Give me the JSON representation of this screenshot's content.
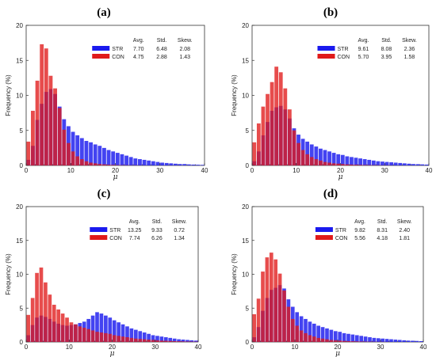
{
  "colors": {
    "STR": "#1a1aee",
    "CON": "#e01a1a"
  },
  "chart_data": [
    {
      "type": "bar",
      "panel": "(a)",
      "xlabel": "μ",
      "ylabel": "Frequency (%)",
      "xlim": [
        0,
        40
      ],
      "ylim": [
        0,
        20
      ],
      "xticks": [
        0,
        10,
        20,
        30,
        40
      ],
      "yticks": [
        0,
        5,
        10,
        15,
        20
      ],
      "bin_width": 1,
      "stats_header": [
        "Avg.",
        "Std.",
        "Skew."
      ],
      "series": [
        {
          "name": "STR",
          "avg": "7.70",
          "std": "6.48",
          "skew": "2.08",
          "values": [
            0.8,
            2.8,
            6.5,
            8.8,
            10.5,
            10.9,
            10.2,
            8.4,
            6.6,
            5.6,
            4.8,
            4.3,
            3.9,
            3.5,
            3.3,
            3.0,
            2.8,
            2.5,
            2.2,
            2.0,
            1.8,
            1.6,
            1.4,
            1.2,
            1.0,
            0.9,
            0.8,
            0.7,
            0.6,
            0.5,
            0.4,
            0.35,
            0.3,
            0.25,
            0.2,
            0.2,
            0.15,
            0.12,
            0.1,
            0.08
          ]
        },
        {
          "name": "CON",
          "avg": "4.75",
          "std": "2.88",
          "skew": "1.43",
          "values": [
            3.4,
            7.8,
            12.1,
            17.3,
            16.7,
            12.8,
            11.0,
            8.2,
            5.1,
            3.2,
            2.0,
            1.3,
            0.9,
            0.6,
            0.4,
            0.3,
            0.2,
            0.15,
            0.1,
            0.08,
            0.05,
            0.04,
            0.03,
            0.02,
            0.02,
            0.01,
            0.01,
            0,
            0,
            0,
            0,
            0,
            0,
            0,
            0,
            0,
            0,
            0,
            0,
            0
          ]
        }
      ]
    },
    {
      "type": "bar",
      "panel": "(b)",
      "xlabel": "μ",
      "ylabel": "Frequency (%)",
      "xlim": [
        0,
        40
      ],
      "ylim": [
        0,
        20
      ],
      "xticks": [
        0,
        10,
        20,
        30,
        40
      ],
      "yticks": [
        0,
        5,
        10,
        15,
        20
      ],
      "bin_width": 1,
      "stats_header": [
        "Avg.",
        "Std.",
        "Skew."
      ],
      "series": [
        {
          "name": "STR",
          "avg": "9.61",
          "std": "8.08",
          "skew": "2.36",
          "values": [
            0.6,
            2.0,
            4.3,
            6.2,
            7.8,
            8.3,
            8.5,
            8.0,
            6.7,
            5.3,
            4.4,
            3.8,
            3.4,
            3.0,
            2.7,
            2.4,
            2.2,
            2.0,
            1.8,
            1.6,
            1.5,
            1.3,
            1.2,
            1.1,
            1.0,
            0.9,
            0.8,
            0.7,
            0.6,
            0.55,
            0.5,
            0.45,
            0.4,
            0.35,
            0.3,
            0.25,
            0.2,
            0.18,
            0.15,
            0.12
          ]
        },
        {
          "name": "CON",
          "avg": "5.70",
          "std": "3.95",
          "skew": "1.58",
          "values": [
            3.3,
            6.0,
            8.4,
            10.2,
            11.9,
            14.1,
            13.3,
            11.0,
            8.0,
            5.0,
            3.2,
            2.2,
            1.6,
            1.2,
            0.9,
            0.7,
            0.5,
            0.4,
            0.3,
            0.25,
            0.2,
            0.15,
            0.12,
            0.1,
            0.08,
            0.06,
            0.05,
            0.04,
            0.03,
            0.02,
            0.02,
            0.01,
            0,
            0,
            0,
            0,
            0,
            0,
            0,
            0
          ]
        }
      ]
    },
    {
      "type": "bar",
      "panel": "(c)",
      "xlabel": "μ",
      "ylabel": "Frequency (%)",
      "xlim": [
        0,
        40
      ],
      "ylim": [
        0,
        20
      ],
      "xticks": [
        0,
        10,
        20,
        30,
        40
      ],
      "yticks": [
        0,
        5,
        10,
        15,
        20
      ],
      "bin_width": 1,
      "stats_header": [
        "Avg.",
        "Std.",
        "Skew."
      ],
      "series": [
        {
          "name": "STR",
          "avg": "13.25",
          "std": "9.33",
          "skew": "0.72",
          "values": [
            1.0,
            2.5,
            3.6,
            3.9,
            3.7,
            3.4,
            3.0,
            2.7,
            2.5,
            2.4,
            2.5,
            2.6,
            2.8,
            3.0,
            3.4,
            3.9,
            4.4,
            4.2,
            3.9,
            3.6,
            3.2,
            2.9,
            2.6,
            2.3,
            2.0,
            1.8,
            1.6,
            1.4,
            1.2,
            1.0,
            0.9,
            0.8,
            0.7,
            0.6,
            0.5,
            0.4,
            0.35,
            0.3,
            0.25,
            0.2
          ]
        },
        {
          "name": "CON",
          "avg": "7.74",
          "std": "6.26",
          "skew": "1.34",
          "values": [
            4.0,
            6.5,
            10.2,
            11.0,
            8.8,
            7.0,
            5.5,
            4.8,
            4.2,
            3.6,
            2.9,
            2.6,
            2.3,
            2.1,
            1.9,
            1.7,
            1.5,
            1.4,
            1.3,
            1.2,
            1.0,
            0.9,
            0.8,
            0.7,
            0.6,
            0.5,
            0.45,
            0.4,
            0.35,
            0.3,
            0.25,
            0.2,
            0.18,
            0.15,
            0.12,
            0.1,
            0.08,
            0.06,
            0.05,
            0.04
          ]
        }
      ]
    },
    {
      "type": "bar",
      "panel": "(d)",
      "xlabel": "μ",
      "ylabel": "Frequency (%)",
      "xlim": [
        0,
        40
      ],
      "ylim": [
        0,
        20
      ],
      "xticks": [
        0,
        10,
        20,
        30,
        40
      ],
      "yticks": [
        0,
        5,
        10,
        15,
        20
      ],
      "bin_width": 1,
      "stats_header": [
        "Avg.",
        "Std.",
        "Skew."
      ],
      "series": [
        {
          "name": "STR",
          "avg": "9.82",
          "std": "8.31",
          "skew": "2.40",
          "values": [
            0.7,
            2.2,
            4.6,
            6.5,
            7.7,
            8.0,
            8.4,
            7.9,
            6.3,
            5.2,
            4.4,
            3.8,
            3.4,
            3.0,
            2.7,
            2.4,
            2.2,
            2.0,
            1.8,
            1.6,
            1.5,
            1.3,
            1.2,
            1.1,
            1.0,
            0.9,
            0.8,
            0.7,
            0.6,
            0.55,
            0.5,
            0.45,
            0.4,
            0.35,
            0.3,
            0.25,
            0.2,
            0.18,
            0.15,
            0.12
          ]
        },
        {
          "name": "CON",
          "avg": "5.56",
          "std": "4.18",
          "skew": "1.81",
          "values": [
            4.1,
            6.4,
            10.4,
            12.5,
            13.2,
            12.2,
            10.1,
            7.6,
            5.2,
            3.4,
            2.4,
            1.7,
            1.3,
            1.0,
            0.8,
            0.6,
            0.5,
            0.4,
            0.3,
            0.25,
            0.2,
            0.15,
            0.12,
            0.1,
            0.08,
            0.06,
            0.05,
            0.04,
            0.03,
            0.02,
            0.02,
            0.01,
            0,
            0,
            0,
            0,
            0,
            0,
            0,
            0
          ]
        }
      ]
    }
  ]
}
